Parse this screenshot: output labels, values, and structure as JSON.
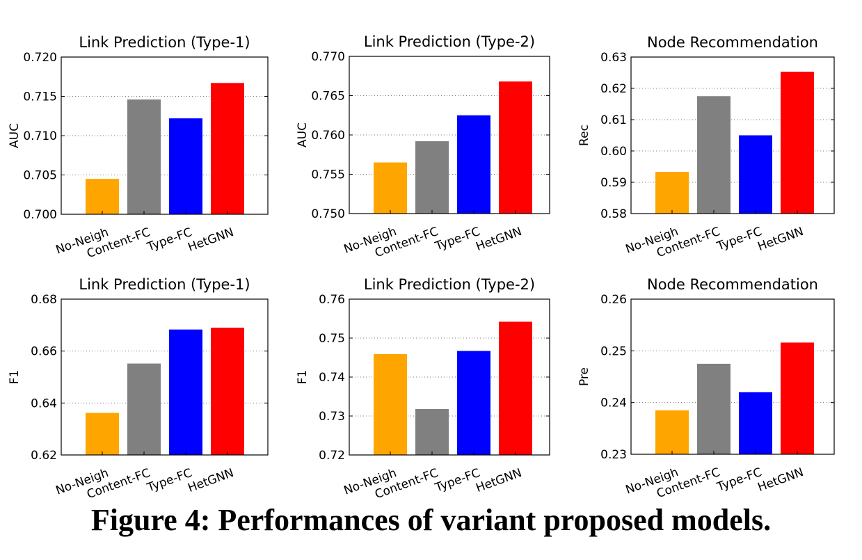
{
  "chart_data": [
    {
      "type": "bar",
      "title": "Link Prediction (Type-1)",
      "ylabel": "AUC",
      "categories": [
        "No-Neigh",
        "Content-FC",
        "Type-FC",
        "HetGNN"
      ],
      "values": [
        0.7045,
        0.7146,
        0.7122,
        0.7167
      ],
      "ylim": [
        0.7,
        0.72
      ],
      "yticks": [
        "0.700",
        "0.705",
        "0.710",
        "0.715",
        "0.720"
      ],
      "grid": true
    },
    {
      "type": "bar",
      "title": "Link Prediction (Type-2)",
      "ylabel": "AUC",
      "categories": [
        "No-Neigh",
        "Content-FC",
        "Type-FC",
        "HetGNN"
      ],
      "values": [
        0.7565,
        0.7592,
        0.7625,
        0.7668
      ],
      "ylim": [
        0.75,
        0.77
      ],
      "yticks": [
        "0.750",
        "0.755",
        "0.760",
        "0.765",
        "0.770"
      ],
      "grid": true
    },
    {
      "type": "bar",
      "title": "Node Recommendation",
      "ylabel": "Rec",
      "categories": [
        "No-Neigh",
        "Content-FC",
        "Type-FC",
        "HetGNN"
      ],
      "values": [
        0.5933,
        0.6175,
        0.605,
        0.6253
      ],
      "ylim": [
        0.58,
        0.63
      ],
      "yticks": [
        "0.58",
        "0.59",
        "0.60",
        "0.61",
        "0.62",
        "0.63"
      ],
      "grid": true
    },
    {
      "type": "bar",
      "title": "Link Prediction (Type-1)",
      "ylabel": "F1",
      "categories": [
        "No-Neigh",
        "Content-FC",
        "Type-FC",
        "HetGNN"
      ],
      "values": [
        0.6362,
        0.6552,
        0.6683,
        0.669
      ],
      "ylim": [
        0.62,
        0.68
      ],
      "yticks": [
        "0.62",
        "0.64",
        "0.66",
        "0.68"
      ],
      "grid": true
    },
    {
      "type": "bar",
      "title": "Link Prediction (Type-2)",
      "ylabel": "F1",
      "categories": [
        "No-Neigh",
        "Content-FC",
        "Type-FC",
        "HetGNN"
      ],
      "values": [
        0.7459,
        0.7318,
        0.7467,
        0.7542
      ],
      "ylim": [
        0.72,
        0.76
      ],
      "yticks": [
        "0.72",
        "0.73",
        "0.74",
        "0.75",
        "0.76"
      ],
      "grid": true
    },
    {
      "type": "bar",
      "title": "Node Recommendation",
      "ylabel": "Pre",
      "categories": [
        "No-Neigh",
        "Content-FC",
        "Type-FC",
        "HetGNN"
      ],
      "values": [
        0.2385,
        0.2475,
        0.242,
        0.2516
      ],
      "ylim": [
        0.23,
        0.26
      ],
      "yticks": [
        "0.23",
        "0.24",
        "0.25",
        "0.26"
      ],
      "grid": true
    }
  ],
  "colors": [
    "#ffa500",
    "#808080",
    "#0000ff",
    "#ff0000"
  ],
  "caption": "Figure 4: Performances of variant proposed models."
}
